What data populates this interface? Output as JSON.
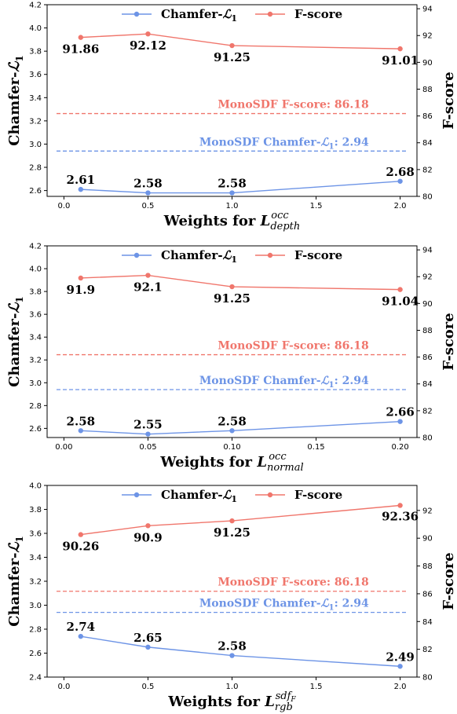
{
  "colors": {
    "chamfer": "#6d94e6",
    "fscore": "#f0766c",
    "mono_fscore": "#f0766c",
    "mono_chamfer": "#6d94e6"
  },
  "chart_data": [
    {
      "type": "line",
      "xlabel": "Weights for L_depth^occ",
      "xlabel_main": "Weights for ",
      "xlabel_base": "L",
      "xlabel_sup": "occ",
      "xlabel_sub": "depth",
      "ylabel_left": "Chamfer-L1",
      "ylabel_right": "F-score",
      "xlim": [
        -0.1,
        2.1
      ],
      "ylim_left": [
        2.55,
        4.2
      ],
      "ylim_right": [
        80,
        94.3
      ],
      "xticks": [
        0.0,
        0.5,
        1.0,
        1.5,
        2.0
      ],
      "xtick_labels": [
        "0.0",
        "0.5",
        "1.0",
        "1.5",
        "2.0"
      ],
      "yticks_left": [
        2.6,
        2.8,
        3.0,
        3.2,
        3.4,
        3.6,
        3.8,
        4.0,
        4.2
      ],
      "ytick_labels_left": [
        "2.6",
        "2.8",
        "3.0",
        "3.2",
        "3.4",
        "3.6",
        "3.8",
        "4.0",
        "4.2"
      ],
      "yticks_right": [
        80,
        82,
        84,
        86,
        88,
        90,
        92,
        94
      ],
      "ytick_labels_right": [
        "80",
        "82",
        "84",
        "86",
        "88",
        "90",
        "92",
        "94"
      ],
      "x": [
        0.1,
        0.5,
        1.0,
        2.0
      ],
      "series": [
        {
          "name": "Chamfer-L1",
          "axis": "left",
          "values": [
            2.61,
            2.58,
            2.58,
            2.68
          ],
          "labels": [
            "2.61",
            "2.58",
            "2.58",
            "2.68"
          ]
        },
        {
          "name": "F-score",
          "axis": "right",
          "values": [
            91.86,
            92.12,
            91.25,
            91.01
          ],
          "labels": [
            "91.86",
            "92.12",
            "91.25",
            "91.01"
          ]
        }
      ],
      "reference_lines": [
        {
          "label": "MonoSDF F-score: 86.18",
          "axis": "right",
          "value": 86.18,
          "color_key": "mono_fscore"
        },
        {
          "label_prefix": "MonoSDF Chamfer-",
          "label_suffix": ": 2.94",
          "label": "MonoSDF Chamfer-L1: 2.94",
          "axis": "left",
          "value": 2.94,
          "color_key": "mono_chamfer"
        }
      ],
      "legend": {
        "position": "top-center",
        "entries": [
          "Chamfer-L1",
          "F-score"
        ]
      }
    },
    {
      "type": "line",
      "xlabel": "Weights for L_normal^occ",
      "xlabel_main": "Weights for ",
      "xlabel_base": "L",
      "xlabel_sup": "occ",
      "xlabel_sub": "normal",
      "ylabel_left": "Chamfer-L1",
      "ylabel_right": "F-score",
      "xlim": [
        -0.01,
        0.21
      ],
      "ylim_left": [
        2.52,
        4.2
      ],
      "ylim_right": [
        80,
        94.3
      ],
      "xticks": [
        0.0,
        0.05,
        0.1,
        0.15,
        0.2
      ],
      "xtick_labels": [
        "0.00",
        "0.05",
        "0.10",
        "0.15",
        "0.20"
      ],
      "yticks_left": [
        2.6,
        2.8,
        3.0,
        3.2,
        3.4,
        3.6,
        3.8,
        4.0,
        4.2
      ],
      "ytick_labels_left": [
        "2.6",
        "2.8",
        "3.0",
        "3.2",
        "3.4",
        "3.6",
        "3.8",
        "4.0",
        "4.2"
      ],
      "yticks_right": [
        80,
        82,
        84,
        86,
        88,
        90,
        92,
        94
      ],
      "ytick_labels_right": [
        "80",
        "82",
        "84",
        "86",
        "88",
        "90",
        "92",
        "94"
      ],
      "x": [
        0.01,
        0.05,
        0.1,
        0.2
      ],
      "series": [
        {
          "name": "Chamfer-L1",
          "axis": "left",
          "values": [
            2.58,
            2.55,
            2.58,
            2.66
          ],
          "labels": [
            "2.58",
            "2.55",
            "2.58",
            "2.66"
          ]
        },
        {
          "name": "F-score",
          "axis": "right",
          "values": [
            91.9,
            92.1,
            91.25,
            91.04
          ],
          "labels": [
            "91.9",
            "92.1",
            "91.25",
            "91.04"
          ]
        }
      ],
      "reference_lines": [
        {
          "label": "MonoSDF F-score: 86.18",
          "axis": "right",
          "value": 86.18,
          "color_key": "mono_fscore"
        },
        {
          "label_prefix": "MonoSDF Chamfer-",
          "label_suffix": ": 2.94",
          "label": "MonoSDF Chamfer-L1: 2.94",
          "axis": "left",
          "value": 2.94,
          "color_key": "mono_chamfer"
        }
      ],
      "legend": {
        "position": "top-center",
        "entries": [
          "Chamfer-L1",
          "F-score"
        ]
      }
    },
    {
      "type": "line",
      "xlabel": "Weights for L_rgb^sdf_F",
      "xlabel_main": "Weights for ",
      "xlabel_base": "L",
      "xlabel_sup": "sdf",
      "xlabel_sup_sub": "F",
      "xlabel_sub": "rgb",
      "ylabel_left": "Chamfer-L1",
      "ylabel_right": "F-score",
      "xlim": [
        -0.1,
        2.1
      ],
      "ylim_left": [
        2.4,
        4.0
      ],
      "ylim_right": [
        80,
        93.8
      ],
      "xticks": [
        0.0,
        0.5,
        1.0,
        1.5,
        2.0
      ],
      "xtick_labels": [
        "0.0",
        "0.5",
        "1.0",
        "1.5",
        "2.0"
      ],
      "yticks_left": [
        2.4,
        2.6,
        2.8,
        3.0,
        3.2,
        3.4,
        3.6,
        3.8,
        4.0
      ],
      "ytick_labels_left": [
        "2.4",
        "2.6",
        "2.8",
        "3.0",
        "3.2",
        "3.4",
        "3.6",
        "3.8",
        "4.0"
      ],
      "yticks_right": [
        80,
        82,
        84,
        86,
        88,
        90,
        92
      ],
      "ytick_labels_right": [
        "80",
        "82",
        "84",
        "86",
        "88",
        "90",
        "92"
      ],
      "x": [
        0.1,
        0.5,
        1.0,
        2.0
      ],
      "series": [
        {
          "name": "Chamfer-L1",
          "axis": "left",
          "values": [
            2.74,
            2.65,
            2.58,
            2.49
          ],
          "labels": [
            "2.74",
            "2.65",
            "2.58",
            "2.49"
          ]
        },
        {
          "name": "F-score",
          "axis": "right",
          "values": [
            90.26,
            90.9,
            91.25,
            92.36
          ],
          "labels": [
            "90.26",
            "90.9",
            "91.25",
            "92.36"
          ]
        }
      ],
      "reference_lines": [
        {
          "label": "MonoSDF F-score: 86.18",
          "axis": "right",
          "value": 86.18,
          "color_key": "mono_fscore"
        },
        {
          "label_prefix": "MonoSDF Chamfer-",
          "label_suffix": ": 2.94",
          "label": "MonoSDF Chamfer-L1: 2.94",
          "axis": "left",
          "value": 2.94,
          "color_key": "mono_chamfer"
        }
      ],
      "legend": {
        "position": "top-center",
        "entries": [
          "Chamfer-L1",
          "F-score"
        ]
      }
    }
  ]
}
